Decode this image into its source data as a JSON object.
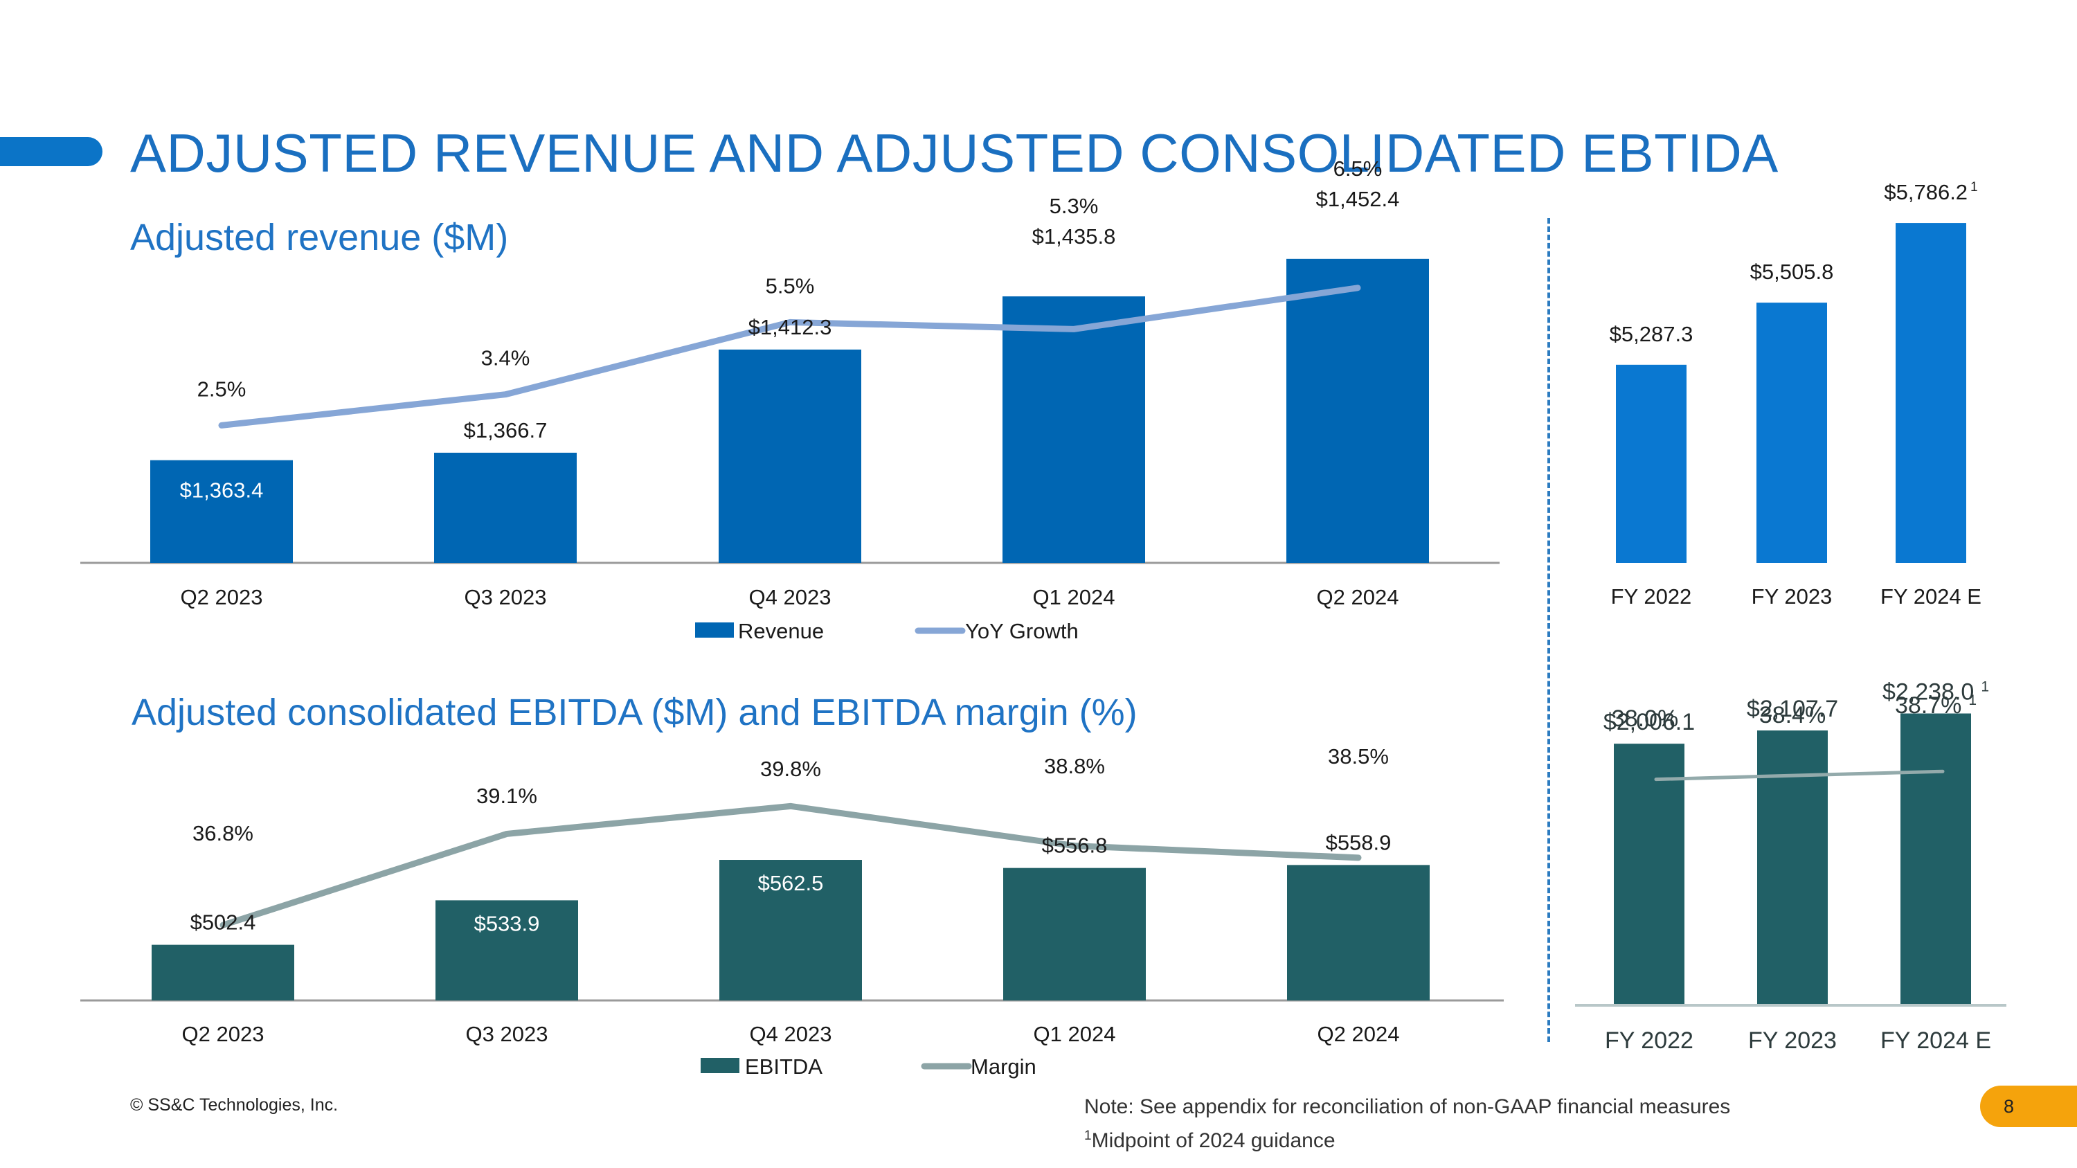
{
  "header": {
    "title": "ADJUSTED REVENUE AND ADJUSTED CONSOLIDATED EBTIDA",
    "revenue_subtitle": "Adjusted revenue ($M)",
    "ebitda_subtitle": "Adjusted consolidated EBITDA ($M) and EBITDA margin (%)"
  },
  "footer": {
    "copyright": "© SS&C Technologies, Inc.",
    "note": "Note: See appendix for reconciliation of non-GAAP financial measures",
    "footnote_marker": "1",
    "footnote_text": "Midpoint of 2024 guidance",
    "page_number": "8"
  },
  "colors": {
    "revenue_bar": "#0066b3",
    "revenue_bar_annual": "#0a78d1",
    "yoy_line": "#86a6d6",
    "ebitda_bar": "#216066",
    "margin_line": "#8ca4a6",
    "annual_margin_line": "#93aaab"
  },
  "chart_data": [
    {
      "id": "quarterly-revenue",
      "type": "bar",
      "categories": [
        "Q2 2023",
        "Q3 2023",
        "Q4 2023",
        "Q1 2024",
        "Q2 2024"
      ],
      "series": [
        {
          "name": "Revenue",
          "kind": "bar",
          "values": [
            1363.4,
            1366.7,
            1412.3,
            1435.8,
            1452.4
          ],
          "labels": [
            "$1,363.4",
            "$1,366.7",
            "$1,412.3",
            "$1,435.8",
            "$1,452.4"
          ]
        },
        {
          "name": "YoY Growth",
          "kind": "line",
          "values": [
            2.5,
            3.4,
            5.5,
            5.3,
            6.5
          ],
          "labels": [
            "2.5%",
            "3.4%",
            "5.5%",
            "5.3%",
            "6.5%"
          ]
        }
      ],
      "legend": [
        "Revenue",
        "YoY Growth"
      ],
      "bar_range": [
        1318,
        1475
      ],
      "line_range": [
        -1.5,
        10
      ]
    },
    {
      "id": "annual-revenue",
      "type": "bar",
      "categories": [
        "FY 2022",
        "FY 2023",
        "FY 2024 E"
      ],
      "values": [
        5287.3,
        5505.8,
        5786.2
      ],
      "labels": [
        "$5,287.3",
        "$5,505.8",
        "$5,786.2"
      ],
      "footnote_markers": [
        "",
        "",
        "1"
      ],
      "bar_range": [
        4590,
        5840
      ]
    },
    {
      "id": "quarterly-ebitda",
      "type": "bar",
      "categories": [
        "Q2 2023",
        "Q3 2023",
        "Q4 2023",
        "Q1 2024",
        "Q2 2024"
      ],
      "series": [
        {
          "name": "EBITDA",
          "kind": "bar",
          "values": [
            502.4,
            533.9,
            562.5,
            556.8,
            558.9
          ],
          "labels": [
            "$502.4",
            "$533.9",
            "$562.5",
            "$556.8",
            "$558.9"
          ]
        },
        {
          "name": "Margin",
          "kind": "line",
          "values": [
            36.8,
            39.1,
            39.8,
            38.8,
            38.5
          ],
          "labels": [
            "36.8%",
            "39.1%",
            "39.8%",
            "38.8%",
            "38.5%"
          ]
        }
      ],
      "legend": [
        "EBITDA",
        "Margin"
      ],
      "bar_range": [
        463,
        588
      ],
      "line_range": [
        34.9,
        40.4
      ]
    },
    {
      "id": "annual-ebitda",
      "type": "bar",
      "categories": [
        "FY 2022",
        "FY 2023",
        "FY 2024 E"
      ],
      "series": [
        {
          "name": "EBITDA",
          "kind": "bar",
          "values": [
            2006.1,
            2107.7,
            2238.0
          ],
          "labels": [
            "$2,006.1",
            "$2,107.7",
            "$2,238.0"
          ]
        },
        {
          "name": "Margin",
          "kind": "line",
          "values": [
            38.0,
            38.4,
            38.7
          ],
          "labels": [
            "38.0%",
            "38.4%",
            "38.7%"
          ]
        }
      ],
      "footnote_markers": [
        "",
        "",
        "1"
      ],
      "bar_range": [
        0,
        2400
      ],
      "line_range": [
        18,
        45.7
      ]
    }
  ]
}
